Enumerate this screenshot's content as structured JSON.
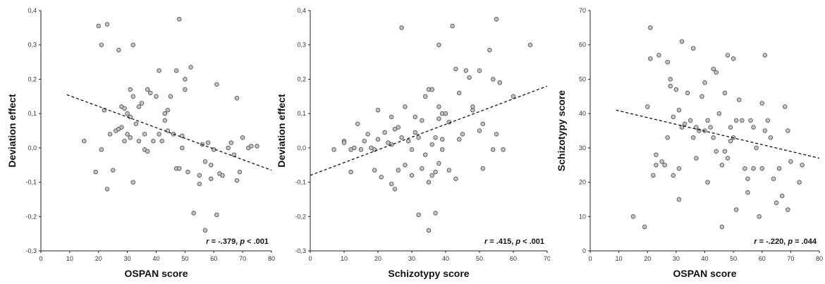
{
  "chart_data": [
    {
      "type": "scatter",
      "title": "",
      "xlabel": "OSPAN score",
      "ylabel": "Deviation effect",
      "xlim": [
        0,
        80
      ],
      "ylim": [
        -0.3,
        0.4
      ],
      "xticks": [
        "0",
        "10",
        "20",
        "30",
        "40",
        "50",
        "60",
        "70",
        "80"
      ],
      "yticks": [
        "-0,3",
        "-0,2",
        "-0,1",
        "0,0",
        "0,1",
        "0,2",
        "0,3",
        "0,4"
      ],
      "stat_r": "r",
      "stat_r_value": " = -.379, ",
      "stat_p": "p",
      "stat_p_value": " < .001",
      "trend": [
        [
          9,
          0.155
        ],
        [
          80,
          -0.065
        ]
      ],
      "points": [
        [
          15,
          0.02
        ],
        [
          19,
          -0.07
        ],
        [
          20,
          0.355
        ],
        [
          21,
          -0.005
        ],
        [
          21,
          0.3
        ],
        [
          22,
          0.11
        ],
        [
          23,
          0.36
        ],
        [
          23,
          -0.12
        ],
        [
          24,
          0.04
        ],
        [
          25,
          -0.065
        ],
        [
          26,
          0.05
        ],
        [
          27,
          0.055
        ],
        [
          27,
          0.285
        ],
        [
          28,
          0.12
        ],
        [
          28,
          0.06
        ],
        [
          29,
          0.115
        ],
        [
          29,
          0.02
        ],
        [
          30,
          0.04
        ],
        [
          30,
          0.1
        ],
        [
          31,
          0.17
        ],
        [
          31,
          0.09
        ],
        [
          31,
          0.03
        ],
        [
          32,
          0.15
        ],
        [
          32,
          0.3
        ],
        [
          32,
          -0.1
        ],
        [
          33,
          0.07
        ],
        [
          34,
          0.02
        ],
        [
          34,
          0.12
        ],
        [
          35,
          0.13
        ],
        [
          36,
          0.04
        ],
        [
          36,
          -0.005
        ],
        [
          37,
          0.17
        ],
        [
          37,
          -0.01
        ],
        [
          38,
          0.16
        ],
        [
          39,
          0.02
        ],
        [
          40,
          0.15
        ],
        [
          41,
          0.225
        ],
        [
          41,
          0.04
        ],
        [
          42,
          0.02
        ],
        [
          43,
          0.08
        ],
        [
          43,
          0.1
        ],
        [
          44,
          0.05
        ],
        [
          44,
          0.11
        ],
        [
          45,
          0.15
        ],
        [
          46,
          0.04
        ],
        [
          47,
          0.225
        ],
        [
          47,
          -0.06
        ],
        [
          48,
          0.375
        ],
        [
          48,
          -0.06
        ],
        [
          49,
          0.035
        ],
        [
          49,
          0.0
        ],
        [
          50,
          0.17
        ],
        [
          50,
          0.2
        ],
        [
          51,
          -0.07
        ],
        [
          52,
          0.235
        ],
        [
          53,
          -0.19
        ],
        [
          55,
          -0.08
        ],
        [
          55,
          -0.105
        ],
        [
          56,
          0.01
        ],
        [
          57,
          -0.24
        ],
        [
          57,
          -0.04
        ],
        [
          58,
          0.015
        ],
        [
          59,
          -0.05
        ],
        [
          59,
          -0.09
        ],
        [
          60,
          -0.005
        ],
        [
          61,
          0.185
        ],
        [
          61,
          -0.195
        ],
        [
          62,
          -0.075
        ],
        [
          63,
          -0.08
        ],
        [
          65,
          0.0
        ],
        [
          66,
          0.015
        ],
        [
          67,
          -0.02
        ],
        [
          68,
          0.145
        ],
        [
          68,
          -0.095
        ],
        [
          69,
          -0.07
        ],
        [
          70,
          0.03
        ],
        [
          72,
          0.0
        ],
        [
          73,
          0.005
        ],
        [
          75,
          0.005
        ]
      ]
    },
    {
      "type": "scatter",
      "title": "",
      "xlabel": "Schizotypy score",
      "ylabel": "Deviation effect",
      "xlim": [
        0,
        70
      ],
      "ylim": [
        -0.3,
        0.4
      ],
      "xticks": [
        "0",
        "10",
        "20",
        "30",
        "40",
        "50",
        "60",
        "70"
      ],
      "yticks": [
        "-0,3",
        "-0,2",
        "-0,1",
        "0,0",
        "0,1",
        "0,2",
        "0,3",
        "0,4"
      ],
      "stat_r": "r",
      "stat_r_value": " = .415, ",
      "stat_p": "p",
      "stat_p_value": " < .001",
      "trend": [
        [
          0,
          -0.08
        ],
        [
          70,
          0.18
        ]
      ],
      "points": [
        [
          7,
          -0.005
        ],
        [
          10,
          0.02
        ],
        [
          10,
          0.015
        ],
        [
          12,
          -0.005
        ],
        [
          12,
          -0.07
        ],
        [
          13,
          0.0
        ],
        [
          14,
          0.07
        ],
        [
          15,
          -0.005
        ],
        [
          16,
          0.02
        ],
        [
          17,
          0.04
        ],
        [
          18,
          0.0
        ],
        [
          19,
          -0.065
        ],
        [
          19,
          -0.005
        ],
        [
          20,
          0.025
        ],
        [
          20,
          0.11
        ],
        [
          21,
          -0.085
        ],
        [
          22,
          0.045
        ],
        [
          23,
          0.015
        ],
        [
          24,
          -0.105
        ],
        [
          24,
          0.01
        ],
        [
          24,
          0.09
        ],
        [
          25,
          -0.12
        ],
        [
          25,
          0.055
        ],
        [
          26,
          -0.065
        ],
        [
          26,
          0.06
        ],
        [
          27,
          0.03
        ],
        [
          27,
          0.35
        ],
        [
          28,
          -0.05
        ],
        [
          28,
          0.12
        ],
        [
          29,
          0.02
        ],
        [
          30,
          -0.08
        ],
        [
          30,
          -0.005
        ],
        [
          31,
          0.045
        ],
        [
          31,
          0.09
        ],
        [
          32,
          -0.195
        ],
        [
          32,
          0.03
        ],
        [
          33,
          0.08
        ],
        [
          33,
          -0.06
        ],
        [
          34,
          -0.02
        ],
        [
          34,
          0.15
        ],
        [
          35,
          -0.24
        ],
        [
          35,
          -0.1
        ],
        [
          35,
          0.17
        ],
        [
          36,
          0.01
        ],
        [
          36,
          -0.08
        ],
        [
          36,
          0.17
        ],
        [
          37,
          -0.19
        ],
        [
          37,
          0.03
        ],
        [
          37,
          -0.07
        ],
        [
          38,
          0.085
        ],
        [
          38,
          0.3
        ],
        [
          38,
          -0.045
        ],
        [
          38,
          0.12
        ],
        [
          39,
          0.1
        ],
        [
          39,
          0.025
        ],
        [
          39,
          -0.005
        ],
        [
          40,
          0.1
        ],
        [
          41,
          0.075
        ],
        [
          41,
          -0.065
        ],
        [
          42,
          0.355
        ],
        [
          43,
          0.23
        ],
        [
          43,
          -0.09
        ],
        [
          44,
          0.025
        ],
        [
          44,
          0.16
        ],
        [
          45,
          0.04
        ],
        [
          46,
          0.225
        ],
        [
          47,
          0.205
        ],
        [
          48,
          0.11
        ],
        [
          48,
          0.12
        ],
        [
          50,
          0.225
        ],
        [
          50,
          0.05
        ],
        [
          51,
          -0.06
        ],
        [
          51,
          0.07
        ],
        [
          53,
          0.285
        ],
        [
          54,
          0.2
        ],
        [
          54,
          -0.005
        ],
        [
          55,
          0.375
        ],
        [
          55,
          0.04
        ],
        [
          56,
          0.19
        ],
        [
          57,
          -0.005
        ],
        [
          60,
          0.15
        ],
        [
          65,
          0.3
        ]
      ]
    },
    {
      "type": "scatter",
      "title": "",
      "xlabel": "OSPAN score",
      "ylabel": "Schizotypy score",
      "xlim": [
        0,
        80
      ],
      "ylim": [
        0,
        70
      ],
      "xticks": [
        "0",
        "10",
        "20",
        "30",
        "40",
        "50",
        "60",
        "70",
        "80"
      ],
      "yticks": [
        "0",
        "10",
        "20",
        "30",
        "40",
        "50",
        "60",
        "70"
      ],
      "stat_r": "r",
      "stat_r_value": " = -.220, ",
      "stat_p": "p",
      "stat_p_value": " = .044",
      "trend": [
        [
          9,
          41
        ],
        [
          80,
          27
        ]
      ],
      "points": [
        [
          15,
          10
        ],
        [
          19,
          7
        ],
        [
          20,
          42
        ],
        [
          21,
          65
        ],
        [
          21,
          56
        ],
        [
          22,
          22
        ],
        [
          23,
          28
        ],
        [
          23,
          25
        ],
        [
          24,
          57
        ],
        [
          25,
          26
        ],
        [
          26,
          25
        ],
        [
          27,
          55
        ],
        [
          27,
          33
        ],
        [
          28,
          50
        ],
        [
          28,
          48
        ],
        [
          29,
          22
        ],
        [
          29,
          39
        ],
        [
          30,
          47
        ],
        [
          31,
          24
        ],
        [
          31,
          15
        ],
        [
          31,
          41
        ],
        [
          32,
          61
        ],
        [
          32,
          36
        ],
        [
          33,
          37
        ],
        [
          34,
          46
        ],
        [
          35,
          38
        ],
        [
          36,
          59
        ],
        [
          36,
          33
        ],
        [
          37,
          27
        ],
        [
          37,
          36
        ],
        [
          38,
          35
        ],
        [
          39,
          45
        ],
        [
          40,
          35
        ],
        [
          40,
          49
        ],
        [
          41,
          20
        ],
        [
          41,
          38
        ],
        [
          42,
          36
        ],
        [
          43,
          53
        ],
        [
          43,
          33
        ],
        [
          44,
          52
        ],
        [
          44,
          29
        ],
        [
          45,
          40
        ],
        [
          46,
          7
        ],
        [
          46,
          25
        ],
        [
          47,
          29
        ],
        [
          47,
          46
        ],
        [
          48,
          57
        ],
        [
          48,
          27
        ],
        [
          49,
          36
        ],
        [
          49,
          32
        ],
        [
          50,
          33
        ],
        [
          50,
          56
        ],
        [
          51,
          38
        ],
        [
          51,
          12
        ],
        [
          52,
          44
        ],
        [
          53,
          38
        ],
        [
          54,
          24
        ],
        [
          55,
          21
        ],
        [
          55,
          17
        ],
        [
          56,
          38
        ],
        [
          57,
          24
        ],
        [
          57,
          36
        ],
        [
          58,
          30
        ],
        [
          59,
          10
        ],
        [
          60,
          43
        ],
        [
          60,
          24
        ],
        [
          61,
          57
        ],
        [
          61,
          35
        ],
        [
          62,
          38
        ],
        [
          63,
          33
        ],
        [
          64,
          21
        ],
        [
          65,
          14
        ],
        [
          66,
          24
        ],
        [
          67,
          16
        ],
        [
          68,
          42
        ],
        [
          69,
          35
        ],
        [
          69,
          12
        ],
        [
          70,
          26
        ],
        [
          73,
          20
        ],
        [
          74,
          25
        ]
      ]
    }
  ]
}
